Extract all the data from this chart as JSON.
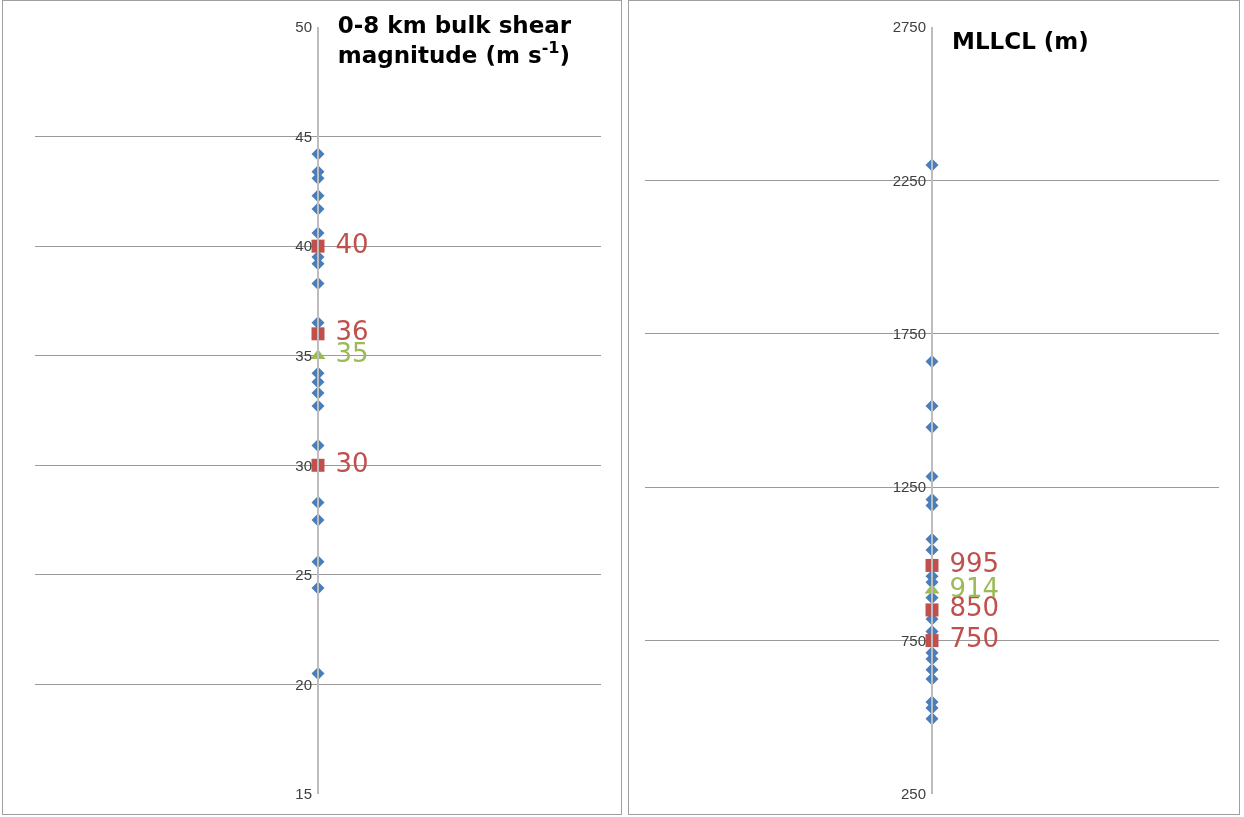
{
  "chart_data": [
    {
      "type": "scatter",
      "title": "0-8 km bulk shear magnitude (m s$^{-1}$)",
      "categories": [
        null
      ],
      "ylim": [
        15,
        50
      ],
      "yticks": [
        15,
        20,
        25,
        30,
        35,
        40,
        45,
        50
      ],
      "grid": "y",
      "tick_labels": "y",
      "series": [
        {
          "color": "#4a7ebb",
          "marker": "diamond",
          "x": [
            null,
            null,
            null,
            null,
            null,
            null,
            null,
            null,
            null,
            null,
            null,
            null,
            null,
            null,
            null,
            null,
            null,
            null,
            null,
            null,
            null,
            null
          ],
          "values": [
            44.2,
            43.4,
            43.1,
            42.3,
            41.7,
            40.6,
            39.5,
            39.2,
            38.3,
            null,
            36.5,
            34.2,
            33.8,
            33.3,
            32.7,
            30.9,
            null,
            28.3,
            27.5,
            25.6,
            24.4,
            20.5
          ]
        },
        {
          "color": "#c0504d",
          "marker": "square",
          "x": [
            null,
            null,
            null
          ],
          "values": [
            40,
            36,
            30
          ],
          "value_labels": [
            "40",
            "36",
            "30"
          ]
        },
        {
          "color": "#9bbb59",
          "marker": "triangle",
          "x": [
            null
          ],
          "values": [
            35
          ],
          "value_labels": [
            "35"
          ]
        }
      ]
    },
    {
      "type": "scatter",
      "title": "MLLCL (m)",
      "categories": [
        null
      ],
      "ylim": [
        250,
        2750
      ],
      "yticks": [
        250,
        750,
        1250,
        1750,
        2250,
        2750
      ],
      "grid": "y",
      "tick_labels": "y",
      "series": [
        {
          "color": "#4a7ebb",
          "marker": "diamond",
          "x": [
            null,
            null,
            null,
            null,
            null,
            null,
            null,
            null,
            null,
            null,
            null,
            null,
            null,
            null,
            null,
            null,
            null,
            null,
            null,
            null,
            null,
            null
          ],
          "values": [
            2300,
            1660,
            1515,
            1445,
            1285,
            1210,
            1190,
            1080,
            1045,
            960,
            940,
            890,
            820,
            null,
            780,
            710,
            690,
            655,
            625,
            550,
            530,
            495
          ]
        },
        {
          "color": "#c0504d",
          "marker": "square",
          "x": [
            null,
            null,
            null
          ],
          "values": [
            995,
            850,
            750
          ],
          "value_labels": [
            "995",
            "850",
            "750"
          ]
        },
        {
          "color": "#9bbb59",
          "marker": "triangle",
          "x": [
            null
          ],
          "values": [
            914
          ],
          "value_labels": [
            "914"
          ]
        }
      ]
    }
  ]
}
